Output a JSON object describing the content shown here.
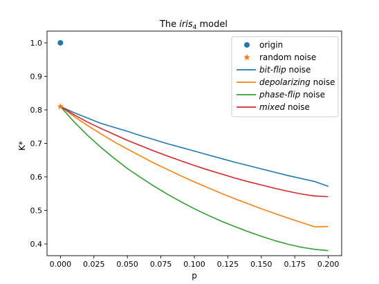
{
  "chart_data": {
    "type": "line",
    "title": {
      "prefix": "The ",
      "italic": "iris",
      "sub": "4",
      "suffix": " model"
    },
    "xlabel": "p",
    "ylabel": "K*",
    "xlim": [
      -0.01,
      0.21
    ],
    "ylim": [
      0.365,
      1.035
    ],
    "x_ticks": [
      0.0,
      0.025,
      0.05,
      0.075,
      0.1,
      0.125,
      0.15,
      0.175,
      0.2
    ],
    "x_tick_labels": [
      "0.000",
      "0.025",
      "0.050",
      "0.075",
      "0.100",
      "0.125",
      "0.150",
      "0.175",
      "0.200"
    ],
    "y_ticks": [
      0.4,
      0.5,
      0.6,
      0.7,
      0.8,
      0.9,
      1.0
    ],
    "y_tick_labels": [
      "0.4",
      "0.5",
      "0.6",
      "0.7",
      "0.8",
      "0.9",
      "1.0"
    ],
    "grid": false,
    "legend_position": "top-right",
    "points": [
      {
        "name": "origin",
        "marker": "circle",
        "color": "#1f77b4",
        "x": 0.0,
        "y": 1.0
      },
      {
        "name": "random noise",
        "marker": "star",
        "color": "#ff7f0e",
        "x": 0.0,
        "y": 0.81
      }
    ],
    "x": [
      0.0,
      0.01,
      0.02,
      0.03,
      0.04,
      0.05,
      0.06,
      0.07,
      0.08,
      0.09,
      0.1,
      0.11,
      0.12,
      0.13,
      0.14,
      0.15,
      0.16,
      0.17,
      0.18,
      0.19,
      0.2
    ],
    "series": [
      {
        "name": {
          "italic": "bit-flip",
          "rest": " noise"
        },
        "color": "#1f77b4",
        "values": [
          0.81,
          0.792,
          0.776,
          0.76,
          0.748,
          0.736,
          0.723,
          0.711,
          0.699,
          0.688,
          0.677,
          0.666,
          0.655,
          0.644,
          0.634,
          0.624,
          0.614,
          0.604,
          0.595,
          0.586,
          0.572
        ]
      },
      {
        "name": {
          "italic": "depolarizing",
          "rest": " noise"
        },
        "color": "#ff7f0e",
        "values": [
          0.81,
          0.781,
          0.754,
          0.729,
          0.705,
          0.683,
          0.662,
          0.641,
          0.622,
          0.603,
          0.585,
          0.568,
          0.551,
          0.535,
          0.52,
          0.505,
          0.491,
          0.477,
          0.464,
          0.451,
          0.452
        ]
      },
      {
        "name": {
          "italic": "phase-flip",
          "rest": " noise"
        },
        "color": "#2ca02c",
        "values": [
          0.81,
          0.765,
          0.725,
          0.689,
          0.656,
          0.625,
          0.598,
          0.572,
          0.548,
          0.526,
          0.505,
          0.486,
          0.468,
          0.452,
          0.437,
          0.423,
          0.41,
          0.399,
          0.39,
          0.384,
          0.38
        ]
      },
      {
        "name": {
          "italic": "mixed",
          "rest": " noise"
        },
        "color": "#d62728",
        "values": [
          0.81,
          0.786,
          0.764,
          0.745,
          0.727,
          0.709,
          0.693,
          0.677,
          0.662,
          0.648,
          0.634,
          0.621,
          0.609,
          0.597,
          0.586,
          0.576,
          0.566,
          0.557,
          0.549,
          0.543,
          0.541
        ]
      }
    ]
  }
}
